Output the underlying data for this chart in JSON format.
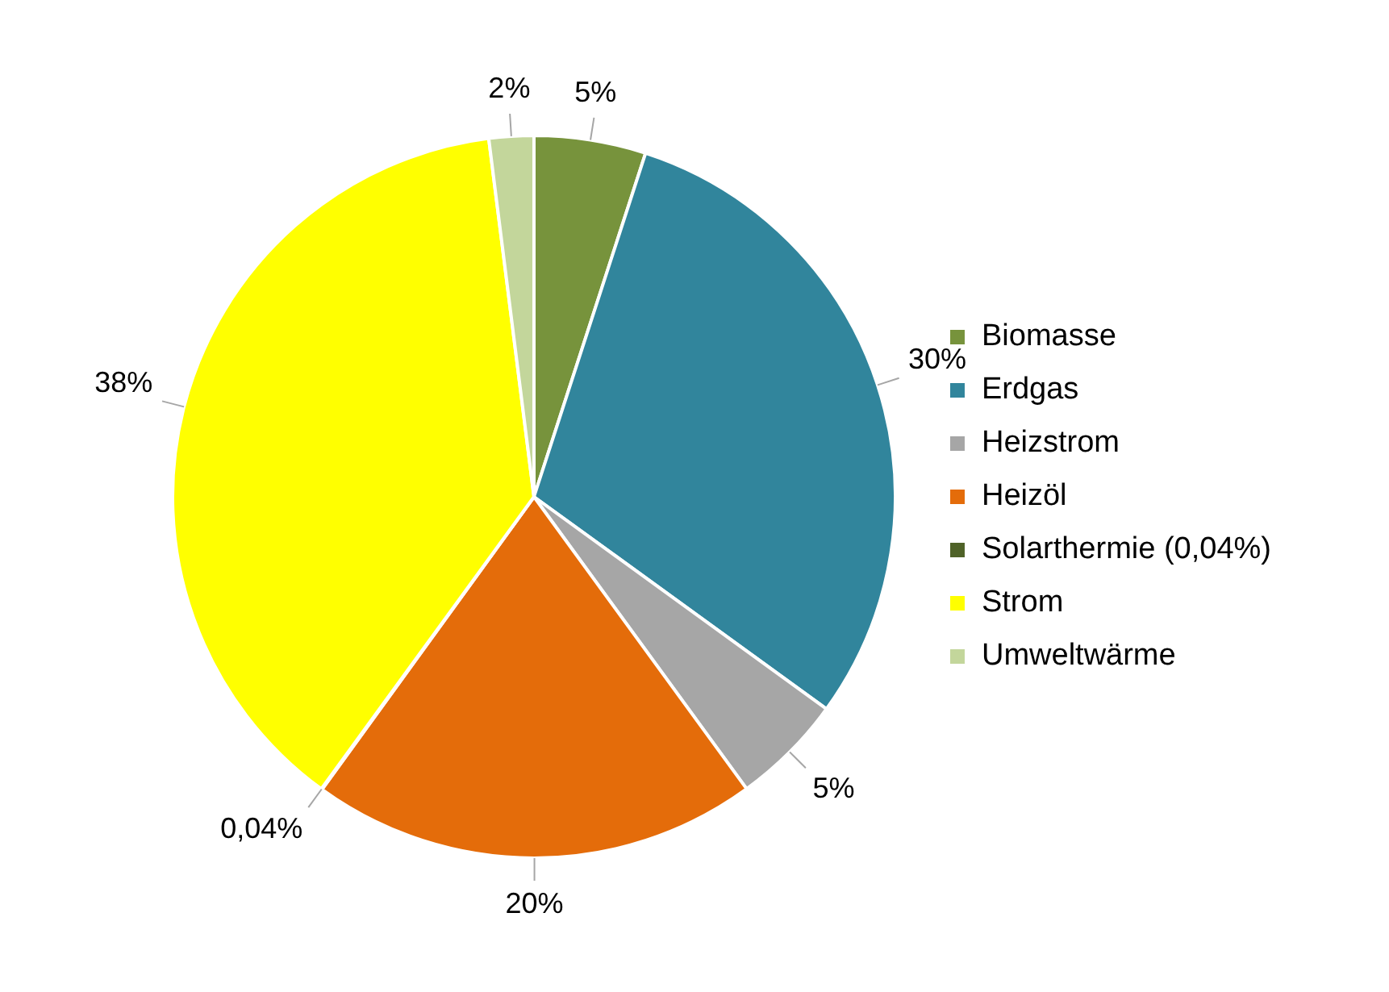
{
  "chart_data": {
    "type": "pie",
    "categories": [
      "Biomasse",
      "Erdgas",
      "Heizstrom",
      "Heizöl",
      "Solarthermie (0,04%)",
      "Strom",
      "Umweltwärme"
    ],
    "values": [
      5,
      30,
      5,
      20,
      0.04,
      38,
      2
    ],
    "value_labels": [
      "5%",
      "30%",
      "5%",
      "20%",
      "0,04%",
      "38%",
      "2%"
    ],
    "colors": [
      "#77933c",
      "#31859c",
      "#a6a6a6",
      "#e46c0a",
      "#4f6228",
      "#ffff00",
      "#c3d69b"
    ],
    "legend": "right"
  }
}
